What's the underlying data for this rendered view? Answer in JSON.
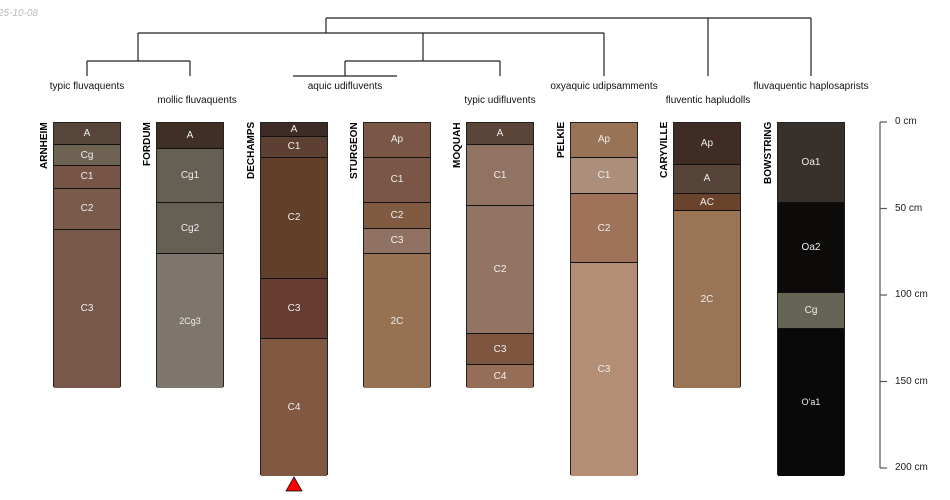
{
  "stamp": "25-10-08",
  "depth_axis": {
    "unit": "cm",
    "ticks": [
      "0 cm",
      "50 cm",
      "100 cm",
      "150 cm",
      "200 cm"
    ],
    "tick_values": [
      0,
      50,
      100,
      150,
      200
    ],
    "max": 200
  },
  "taxa": [
    {
      "label": "typic fluvaquents"
    },
    {
      "label": "mollic fluvaquents"
    },
    {
      "label": "aquic udifluvents"
    },
    {
      "label": "typic udifluvents"
    },
    {
      "label": "oxyaquic udipsamments"
    },
    {
      "label": "fluventic hapludolls"
    },
    {
      "label": "fluvaquentic haplosaprists"
    }
  ],
  "profiles": [
    {
      "name": "ARNHEIM",
      "horizons": [
        {
          "name": "A",
          "top": 0,
          "bottom": 13,
          "color": "#57453a"
        },
        {
          "name": "Cg",
          "top": 13,
          "bottom": 25,
          "color": "#6e6252"
        },
        {
          "name": "C1",
          "top": 25,
          "bottom": 38,
          "color": "#765446"
        },
        {
          "name": "C2",
          "top": 38,
          "bottom": 62,
          "color": "#7a5a4a"
        },
        {
          "name": "C3",
          "top": 62,
          "bottom": 153,
          "color": "#775849"
        }
      ]
    },
    {
      "name": "FORDUM",
      "horizons": [
        {
          "name": "A",
          "top": 0,
          "bottom": 15,
          "color": "#3f2f24"
        },
        {
          "name": "Cg1",
          "top": 15,
          "bottom": 46,
          "color": "#666054"
        },
        {
          "name": "Cg2",
          "top": 46,
          "bottom": 76,
          "color": "#666054"
        },
        {
          "name": "2Cg3",
          "top": 76,
          "bottom": 153,
          "color": "#7e766c"
        }
      ]
    },
    {
      "name": "DECHAMPS",
      "red_marker": true,
      "horizons": [
        {
          "name": "A",
          "top": 0,
          "bottom": 8,
          "color": "#3f2b25"
        },
        {
          "name": "C1",
          "top": 8,
          "bottom": 20,
          "color": "#5e4032"
        },
        {
          "name": "C2",
          "top": 20,
          "bottom": 90,
          "color": "#623f2a"
        },
        {
          "name": "C3",
          "top": 90,
          "bottom": 125,
          "color": "#673d31"
        },
        {
          "name": "C4",
          "top": 125,
          "bottom": 204,
          "color": "#815841"
        }
      ]
    },
    {
      "name": "STURGEON",
      "horizons": [
        {
          "name": "Ap",
          "top": 0,
          "bottom": 20,
          "color": "#7a5646"
        },
        {
          "name": "C1",
          "top": 20,
          "bottom": 46,
          "color": "#7a5646"
        },
        {
          "name": "C2",
          "top": 46,
          "bottom": 61,
          "color": "#815a42"
        },
        {
          "name": "C3",
          "top": 61,
          "bottom": 76,
          "color": "#917262"
        },
        {
          "name": "2C",
          "top": 76,
          "bottom": 153,
          "color": "#967252"
        }
      ]
    },
    {
      "name": "MOQUAH",
      "horizons": [
        {
          "name": "A",
          "top": 0,
          "bottom": 13,
          "color": "#5a4538"
        },
        {
          "name": "C1",
          "top": 13,
          "bottom": 48,
          "color": "#927262"
        },
        {
          "name": "C2",
          "top": 48,
          "bottom": 122,
          "color": "#937464"
        },
        {
          "name": "C3",
          "top": 122,
          "bottom": 140,
          "color": "#7e5640"
        },
        {
          "name": "C4",
          "top": 140,
          "bottom": 153,
          "color": "#966e58"
        }
      ]
    },
    {
      "name": "PELKIE",
      "horizons": [
        {
          "name": "Ap",
          "top": 0,
          "bottom": 20,
          "color": "#987355"
        },
        {
          "name": "C1",
          "top": 20,
          "bottom": 41,
          "color": "#ad8e7a"
        },
        {
          "name": "C2",
          "top": 41,
          "bottom": 81,
          "color": "#9e735a"
        },
        {
          "name": "C3",
          "top": 81,
          "bottom": 204,
          "color": "#b38e74"
        }
      ]
    },
    {
      "name": "CARYVILLE",
      "horizons": [
        {
          "name": "Ap",
          "top": 0,
          "bottom": 24,
          "color": "#3f2c25"
        },
        {
          "name": "A",
          "top": 24,
          "bottom": 41,
          "color": "#574438"
        },
        {
          "name": "AC",
          "top": 41,
          "bottom": 51,
          "color": "#6a432c"
        },
        {
          "name": "2C",
          "top": 51,
          "bottom": 153,
          "color": "#9a7555"
        }
      ]
    },
    {
      "name": "BOWSTRING",
      "horizons": [
        {
          "name": "Oa1",
          "top": 0,
          "bottom": 46,
          "color": "#38302a"
        },
        {
          "name": "Oa2",
          "top": 46,
          "bottom": 98,
          "color": "#0c0b0a"
        },
        {
          "name": "Cg",
          "top": 98,
          "bottom": 119,
          "color": "#666454"
        },
        {
          "name": "O'a1",
          "top": 119,
          "bottom": 204,
          "color": "#0a0909"
        }
      ]
    }
  ]
}
